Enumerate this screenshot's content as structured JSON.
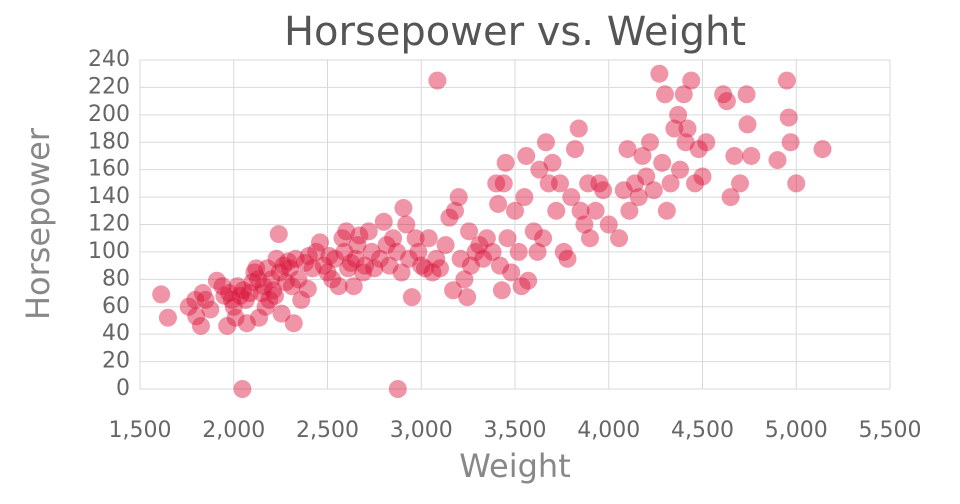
{
  "chart_data": {
    "type": "scatter",
    "title": "Horsepower vs. Weight",
    "x_label": "Weight",
    "y_label": "Horsepower",
    "color": "#dc143c",
    "grid": true,
    "xlim": [
      1500,
      5500
    ],
    "ylim": [
      0,
      240
    ],
    "xticks": [
      {
        "value": 1500,
        "label": "1,500"
      },
      {
        "value": 2000,
        "label": "2,000"
      },
      {
        "value": 2500,
        "label": "2,500"
      },
      {
        "value": 3000,
        "label": "3,000"
      },
      {
        "value": 3500,
        "label": "3,500"
      },
      {
        "value": 4000,
        "label": "4,000"
      },
      {
        "value": 4500,
        "label": "4,500"
      },
      {
        "value": 5000,
        "label": "5,000"
      },
      {
        "value": 5500,
        "label": "5,500"
      }
    ],
    "yticks": [
      0,
      20,
      40,
      60,
      80,
      100,
      120,
      140,
      160,
      180,
      200,
      220,
      240
    ],
    "x": [
      1613,
      1649,
      2046,
      2875,
      3086,
      1760,
      1795,
      1800,
      1825,
      1835,
      1850,
      1875,
      1910,
      1940,
      1950,
      1965,
      1975,
      1990,
      2000,
      2010,
      2020,
      2035,
      2050,
      2065,
      2070,
      2085,
      2100,
      2110,
      2120,
      2130,
      2135,
      2150,
      2160,
      2170,
      2180,
      2190,
      2200,
      2210,
      2220,
      2228,
      2240,
      2245,
      2255,
      2265,
      2278,
      2290,
      2300,
      2310,
      2320,
      2330,
      2345,
      2360,
      2380,
      2395,
      2400,
      2420,
      2440,
      2460,
      2480,
      2500,
      2510,
      2525,
      2540,
      2560,
      2580,
      2590,
      2600,
      2610,
      2625,
      2640,
      2650,
      2660,
      2670,
      2690,
      2700,
      2720,
      2735,
      2750,
      2780,
      2800,
      2815,
      2830,
      2850,
      2870,
      2895,
      2905,
      2920,
      2935,
      2950,
      2970,
      2985,
      3000,
      3020,
      3040,
      3060,
      3080,
      3100,
      3130,
      3150,
      3170,
      3180,
      3200,
      3210,
      3230,
      3245,
      3255,
      3265,
      3290,
      3310,
      3330,
      3350,
      3380,
      3400,
      3410,
      3420,
      3430,
      3440,
      3450,
      3460,
      3480,
      3500,
      3520,
      3535,
      3550,
      3560,
      3570,
      3600,
      3620,
      3630,
      3650,
      3665,
      3680,
      3700,
      3720,
      3740,
      3760,
      3780,
      3800,
      3820,
      3840,
      3850,
      3870,
      3890,
      3900,
      3930,
      3950,
      3970,
      4000,
      4055,
      4080,
      4100,
      4110,
      4140,
      4160,
      4180,
      4200,
      4220,
      4240,
      4270,
      4285,
      4300,
      4310,
      4330,
      4350,
      4370,
      4380,
      4400,
      4410,
      4420,
      4440,
      4460,
      4480,
      4500,
      4520,
      4610,
      4630,
      4650,
      4670,
      4700,
      4735,
      4740,
      4760,
      4900,
      4950,
      4960,
      4970,
      5000,
      5140
    ],
    "values": [
      69,
      52,
      0,
      0,
      225,
      60,
      65,
      53,
      46,
      70,
      65,
      58,
      79,
      75,
      68,
      46,
      70,
      65,
      60,
      52,
      75,
      68,
      72,
      65,
      48,
      70,
      78,
      85,
      88,
      80,
      52,
      70,
      75,
      60,
      88,
      65,
      80,
      72,
      68,
      95,
      113,
      85,
      55,
      90,
      78,
      93,
      88,
      75,
      48,
      95,
      80,
      65,
      92,
      73,
      97,
      88,
      100,
      107,
      90,
      85,
      97,
      80,
      95,
      75,
      110,
      100,
      115,
      88,
      92,
      75,
      95,
      105,
      112,
      85,
      90,
      115,
      100,
      88,
      95,
      122,
      105,
      90,
      110,
      100,
      85,
      132,
      120,
      95,
      67,
      110,
      100,
      90,
      88,
      110,
      85,
      95,
      88,
      105,
      125,
      72,
      130,
      140,
      95,
      80,
      67,
      115,
      90,
      100,
      105,
      95,
      110,
      100,
      150,
      135,
      90,
      72,
      150,
      165,
      110,
      85,
      130,
      100,
      75,
      140,
      170,
      79,
      115,
      100,
      160,
      110,
      180,
      150,
      165,
      130,
      150,
      100,
      95,
      140,
      175,
      190,
      130,
      120,
      150,
      110,
      130,
      150,
      145,
      120,
      110,
      145,
      175,
      130,
      150,
      140,
      170,
      155,
      180,
      145,
      230,
      165,
      215,
      130,
      150,
      190,
      200,
      160,
      215,
      180,
      190,
      225,
      150,
      175,
      155,
      180,
      215,
      210,
      140,
      170,
      150,
      215,
      193,
      170,
      167,
      225,
      198,
      180,
      150,
      175
    ]
  }
}
